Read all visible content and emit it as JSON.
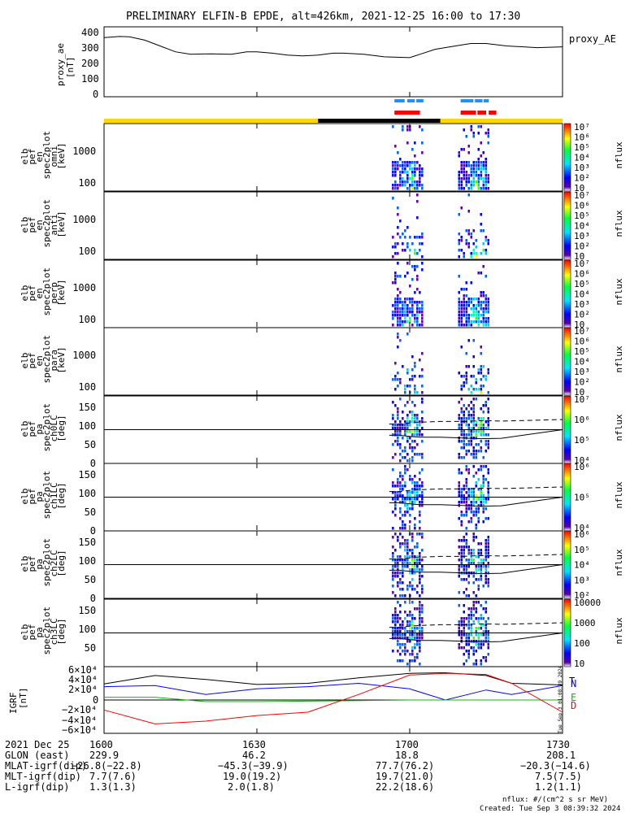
{
  "title": "PRELIMINARY ELFIN-B EPDE, alt=426km, 2021-12-25 16:00 to 17:30",
  "ae_panel": {
    "ylabel": [
      "proxy_ae",
      "[nT]"
    ],
    "legend": "proxy_AE",
    "yticks": [
      "400",
      "300",
      "200",
      "100",
      "0"
    ]
  },
  "spec_panels": [
    {
      "id": "omni",
      "ylabel": [
        "elb",
        "pef",
        "en",
        "spec2plot",
        "omni",
        "[keV]"
      ],
      "yticks": [
        "1000",
        "100"
      ],
      "cbar_label": "nflux",
      "cbar_ticks": [
        "10",
        "10²",
        "10³",
        "10⁴",
        "10⁵",
        "10⁶",
        "10⁷"
      ]
    },
    {
      "id": "anti",
      "ylabel": [
        "elb",
        "pef",
        "en",
        "spec2plot",
        "anti",
        "[keV]"
      ],
      "yticks": [
        "1000",
        "100"
      ],
      "cbar_label": "nflux",
      "cbar_ticks": [
        "10",
        "10²",
        "10³",
        "10⁴",
        "10⁵",
        "10⁶",
        "10⁷"
      ]
    },
    {
      "id": "perp",
      "ylabel": [
        "elb",
        "pef",
        "en",
        "spec2plot",
        "perp",
        "[keV]"
      ],
      "yticks": [
        "1000",
        "100"
      ],
      "cbar_label": "nflux",
      "cbar_ticks": [
        "10",
        "10²",
        "10³",
        "10⁴",
        "10⁵",
        "10⁶",
        "10⁷"
      ]
    },
    {
      "id": "para",
      "ylabel": [
        "elb",
        "pef",
        "en",
        "spec2plot",
        "para",
        "[keV]"
      ],
      "yticks": [
        "1000",
        "100"
      ],
      "cbar_label": "nflux",
      "cbar_ticks": [
        "10",
        "10²",
        "10³",
        "10⁴",
        "10⁵",
        "10⁶",
        "10⁷"
      ]
    },
    {
      "id": "ch0",
      "ylabel": [
        "elb",
        "pef",
        "pa",
        "spec2plot",
        "ch0LC",
        "[deg]"
      ],
      "yticks": [
        "150",
        "100",
        "50",
        "0"
      ],
      "cbar_label": "nflux",
      "cbar_ticks": [
        "10⁴",
        "10⁵",
        "10⁶",
        "10⁷"
      ]
    },
    {
      "id": "ch1",
      "ylabel": [
        "elb",
        "pef",
        "pa",
        "spec2plot",
        "ch1LC",
        "[deg]"
      ],
      "yticks": [
        "150",
        "100",
        "50",
        "0"
      ],
      "cbar_label": "nflux",
      "cbar_ticks": [
        "10⁴",
        "10⁵",
        "10⁶"
      ]
    },
    {
      "id": "ch2",
      "ylabel": [
        "elb",
        "pef",
        "pa",
        "spec2plot",
        "ch2LC",
        "[deg]"
      ],
      "yticks": [
        "150",
        "100",
        "50",
        "0"
      ],
      "cbar_label": "nflux",
      "cbar_ticks": [
        "10²",
        "10³",
        "10⁴",
        "10⁵",
        "10⁶"
      ]
    },
    {
      "id": "ch3",
      "ylabel": [
        "elb",
        "pef",
        "pa",
        "spec2plot",
        "ch3LC",
        "[deg]"
      ],
      "yticks": [
        "150",
        "100",
        "50"
      ],
      "cbar_label": "nflux",
      "cbar_ticks": [
        "10",
        "100",
        "1000",
        "10000"
      ]
    }
  ],
  "igrf_panel": {
    "ylabel": [
      "IGRF",
      "[nT]"
    ],
    "yticks": [
      "6×10⁴",
      "4×10⁴",
      "2×10⁴",
      "0",
      "−2×10⁴",
      "−4×10⁴",
      "−6×10⁴"
    ],
    "legend": [
      {
        "label": "T",
        "color": "#000000"
      },
      {
        "label": "N",
        "color": "#0000ff"
      },
      {
        "label": "E",
        "color": "#00c000"
      },
      {
        "label": "D",
        "color": "#ff0000"
      }
    ]
  },
  "xticks": [
    "1600",
    "1630",
    "1700",
    "1730"
  ],
  "table": {
    "rows": [
      {
        "label": "2021 Dec 25",
        "values": [
          "1600",
          "1630",
          "1700",
          "1730"
        ]
      },
      {
        "label": "GLON (east)",
        "values": [
          "229.9",
          "46.2",
          "18.8",
          "208.1"
        ]
      },
      {
        "label": "MLAT-igrf(dip)",
        "values": [
          "−26.8(−22.8)",
          "−45.3(−39.9)",
          "77.7(76.2)",
          "−20.3(−14.6)"
        ]
      },
      {
        "label": "MLT-igrf(dip)",
        "values": [
          "7.7(7.6)",
          "19.0(19.2)",
          "19.7(21.0)",
          "7.5(7.5)"
        ]
      },
      {
        "label": "L-igrf(dip)",
        "values": [
          "1.3(1.3)",
          "2.0(1.8)",
          "22.2(18.6)",
          "1.2(1.1)"
        ]
      }
    ]
  },
  "footer": {
    "units": "nflux: #/(cm^2 s sr MeV)",
    "created": "Created: Tue Sep  3 08:39:32 2024",
    "side_stamp": "Tue Sep  3 01:08:39 2024"
  },
  "colors": {
    "sunlit_bar": "#ffd700",
    "shadow_bar": "#000000",
    "ibo_bar": "#1e90ff",
    "obo_bar": "#ff0000",
    "curve": "#000000"
  },
  "chart_data": {
    "type": "heatmap",
    "x_range_minutes_after_1600": [
      0,
      90
    ],
    "ae": {
      "type": "line",
      "x_minutes": [
        0,
        3,
        5,
        8,
        11,
        14,
        17,
        21,
        25,
        28,
        30,
        33,
        36,
        39,
        42,
        45,
        47,
        51,
        55,
        60,
        62,
        65,
        69,
        72,
        75,
        79,
        85,
        90
      ],
      "values": [
        355,
        362,
        360,
        340,
        305,
        270,
        255,
        258,
        255,
        270,
        270,
        262,
        250,
        245,
        250,
        262,
        262,
        255,
        240,
        235,
        255,
        285,
        305,
        320,
        320,
        305,
        295,
        300
      ],
      "ylim": [
        0,
        420
      ]
    },
    "science_zones_minutes": [
      [
        56.5,
        62.5
      ],
      [
        69.5,
        75.5
      ]
    ],
    "shadow_interval_minutes": [
      42,
      66
    ],
    "ibo_segments_minutes": [
      [
        57.0,
        59.0
      ],
      [
        59.5,
        61.0
      ],
      [
        61.3,
        62.7
      ],
      [
        70.0,
        72.5
      ],
      [
        72.8,
        74.3
      ],
      [
        74.5,
        75.5
      ]
    ],
    "obo_segments_minutes": [
      [
        57.0,
        62.0
      ],
      [
        70.0,
        73.0
      ],
      [
        73.3,
        75.0
      ],
      [
        75.5,
        77.0
      ]
    ],
    "energy_ylim_keV": [
      60,
      7000
    ],
    "pa_ylim_deg": [
      0,
      180
    ],
    "loss_cone_deg": {
      "minutes": [
        56,
        58,
        60,
        62,
        66,
        70,
        74,
        78,
        90
      ],
      "lc": [
        75,
        75,
        72,
        70,
        70,
        68,
        66,
        67,
        90
      ],
      "alc": [
        105,
        105,
        108,
        110,
        112,
        112,
        114,
        113,
        117
      ]
    },
    "igrf": {
      "x_minutes": [
        0,
        10,
        20,
        30,
        40,
        50,
        60,
        67,
        75,
        80,
        90
      ],
      "T": [
        29000,
        44000,
        37000,
        28000,
        30000,
        40000,
        48000,
        49000,
        44000,
        30000,
        27000
      ],
      "N": [
        24000,
        26000,
        10000,
        20000,
        24000,
        30000,
        20000,
        0,
        18000,
        10000,
        26000
      ],
      "E": [
        5000,
        5000,
        -3000,
        -3000,
        -2000,
        -1000,
        0,
        0,
        0,
        0,
        0
      ],
      "D": [
        -18000,
        -43000,
        -38000,
        -28000,
        -22000,
        10000,
        45000,
        48000,
        46000,
        30000,
        -22000
      ],
      "ylim": [
        -60000,
        60000
      ]
    }
  }
}
